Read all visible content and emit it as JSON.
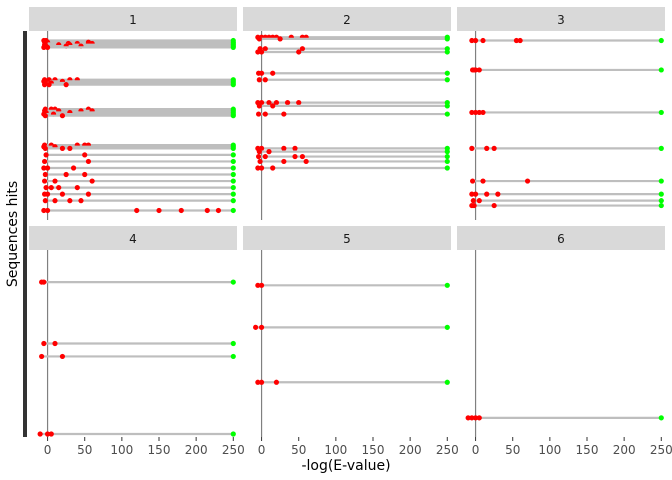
{
  "chart_data": {
    "type": "faceted-lollipop",
    "xlabel": "-log(E-value)",
    "ylabel": "Sequences hits",
    "xlim": [
      -25,
      255
    ],
    "x_ticks": [
      0,
      50,
      100,
      150,
      200,
      250
    ],
    "x_tick_labels": [
      "0",
      "50",
      "100",
      "150",
      "200",
      "250"
    ],
    "grid": false,
    "colors": {
      "segment": "#bebebe",
      "hit_point": "#ff0000",
      "best_point": "#00ff00",
      "strip_bg": "#d9d9d9",
      "zero_line": "#808080",
      "side_bar": "#333333"
    },
    "facets": [
      {
        "label": "1",
        "rows": [
          {
            "y": 0.2,
            "hits": [
              -5,
              -2
            ],
            "best": 250
          },
          {
            "y": 0.25,
            "hits": [
              -4,
              0,
              55
            ],
            "best": 250
          },
          {
            "y": 0.29,
            "hits": [
              -3,
              28,
              40,
              55,
              60
            ],
            "best": 250
          },
          {
            "y": 0.33,
            "hits": [
              -4,
              15,
              30
            ],
            "best": 250
          },
          {
            "y": 0.37,
            "hits": [
              -2,
              25,
              45
            ],
            "best": 250
          },
          {
            "y": 0.41,
            "hits": [
              -5,
              0
            ],
            "best": 250
          },
          {
            "y": 1.4,
            "hits": [
              -4,
              2,
              10,
              30,
              40
            ],
            "best": 250
          },
          {
            "y": 1.45,
            "hits": [
              -5,
              0,
              20
            ],
            "best": 250
          },
          {
            "y": 1.5,
            "hits": [
              -3,
              5
            ],
            "best": 250
          },
          {
            "y": 1.55,
            "hits": [
              -4,
              2,
              25
            ],
            "best": 250
          },
          {
            "y": 2.3,
            "hits": [
              -3,
              5,
              10,
              55
            ],
            "best": 250
          },
          {
            "y": 2.35,
            "hits": [
              -4,
              15,
              45,
              60
            ],
            "best": 250
          },
          {
            "y": 2.4,
            "hits": [
              -2,
              30
            ],
            "best": 250
          },
          {
            "y": 2.45,
            "hits": [
              -5,
              8
            ],
            "best": 250
          },
          {
            "y": 2.5,
            "hits": [
              -3,
              20
            ],
            "best": 250
          },
          {
            "y": 3.4,
            "hits": [
              -4,
              5,
              40,
              50,
              55
            ],
            "best": 250
          },
          {
            "y": 3.45,
            "hits": [
              -5,
              10
            ],
            "best": 250
          },
          {
            "y": 3.5,
            "hits": [
              -3,
              20,
              30
            ],
            "best": 250
          },
          {
            "y": 3.7,
            "hits": [
              -2,
              50
            ],
            "best": 250
          },
          {
            "y": 3.9,
            "hits": [
              -4,
              55
            ],
            "best": 250
          },
          {
            "y": 4.1,
            "hits": [
              -5,
              0,
              35
            ],
            "best": 250
          },
          {
            "y": 4.3,
            "hits": [
              -3,
              25,
              50
            ],
            "best": 250
          },
          {
            "y": 4.5,
            "hits": [
              -4,
              10,
              60
            ],
            "best": 250
          },
          {
            "y": 4.7,
            "hits": [
              -2,
              5,
              15,
              40
            ],
            "best": 250
          },
          {
            "y": 4.9,
            "hits": [
              -4,
              0,
              20,
              55
            ],
            "best": 250
          },
          {
            "y": 5.1,
            "hits": [
              -3,
              10,
              30,
              45
            ],
            "best": 250
          },
          {
            "y": 5.4,
            "hits": [
              -5,
              0,
              120,
              150,
              180,
              215,
              230
            ],
            "best": 250
          }
        ]
      },
      {
        "label": "2",
        "rows": [
          {
            "y": 0.1,
            "hits": [
              -5,
              0,
              5,
              10,
              15,
              20,
              40,
              55,
              60
            ],
            "best": 250
          },
          {
            "y": 0.15,
            "hits": [
              -3,
              25
            ],
            "best": 250
          },
          {
            "y": 0.45,
            "hits": [
              -2,
              5,
              55
            ],
            "best": 250
          },
          {
            "y": 0.55,
            "hits": [
              -5,
              0,
              50
            ],
            "best": 250
          },
          {
            "y": 1.2,
            "hits": [
              -4,
              0,
              15
            ],
            "best": 250
          },
          {
            "y": 1.4,
            "hits": [
              -3,
              5
            ],
            "best": 250
          },
          {
            "y": 2.1,
            "hits": [
              -5,
              0,
              10,
              20,
              35,
              50
            ],
            "best": 250
          },
          {
            "y": 2.2,
            "hits": [
              -3,
              15
            ],
            "best": 250
          },
          {
            "y": 2.45,
            "hits": [
              -4,
              5,
              30
            ],
            "best": 250
          },
          {
            "y": 3.5,
            "hits": [
              -5,
              0,
              30,
              45
            ],
            "best": 250
          },
          {
            "y": 3.6,
            "hits": [
              -3,
              10
            ],
            "best": 250
          },
          {
            "y": 3.75,
            "hits": [
              -4,
              5,
              45,
              55
            ],
            "best": 250
          },
          {
            "y": 3.9,
            "hits": [
              -2,
              30,
              60
            ],
            "best": 250
          },
          {
            "y": 4.1,
            "hits": [
              -5,
              0,
              15
            ],
            "best": 250
          }
        ]
      },
      {
        "label": "3",
        "rows": [
          {
            "y": 0.2,
            "hits": [
              -5,
              0,
              10,
              55,
              60
            ],
            "best": 250
          },
          {
            "y": 1.1,
            "hits": [
              -4,
              -2,
              0,
              5
            ],
            "best": 250
          },
          {
            "y": 2.4,
            "hits": [
              -5,
              0,
              5,
              10
            ],
            "best": 250
          },
          {
            "y": 3.5,
            "hits": [
              -5,
              15,
              25
            ],
            "best": 250
          },
          {
            "y": 4.5,
            "hits": [
              -4,
              10,
              70
            ],
            "best": 250
          },
          {
            "y": 4.9,
            "hits": [
              -5,
              0,
              15,
              30
            ],
            "best": 250
          },
          {
            "y": 5.1,
            "hits": [
              -3,
              5
            ],
            "best": 250
          },
          {
            "y": 5.25,
            "hits": [
              -5,
              -2,
              25
            ],
            "best": 250
          }
        ]
      },
      {
        "label": "4",
        "rows": [
          {
            "y": 0.9,
            "hits": [
              -8,
              -5
            ],
            "best": 250
          },
          {
            "y": 2.8,
            "hits": [
              -5,
              10
            ],
            "best": 250
          },
          {
            "y": 3.2,
            "hits": [
              -8,
              20
            ],
            "best": 250
          },
          {
            "y": 5.6,
            "hits": [
              -10,
              0,
              5
            ],
            "best": 250
          }
        ]
      },
      {
        "label": "5",
        "rows": [
          {
            "y": 1.0,
            "hits": [
              -5,
              0
            ],
            "best": 250
          },
          {
            "y": 2.3,
            "hits": [
              -8,
              0
            ],
            "best": 250
          },
          {
            "y": 4.0,
            "hits": [
              -5,
              0,
              20
            ],
            "best": 250
          }
        ]
      },
      {
        "label": "6",
        "rows": [
          {
            "y": 5.1,
            "hits": [
              -10,
              -5,
              0,
              5
            ],
            "best": 250
          }
        ]
      }
    ]
  }
}
